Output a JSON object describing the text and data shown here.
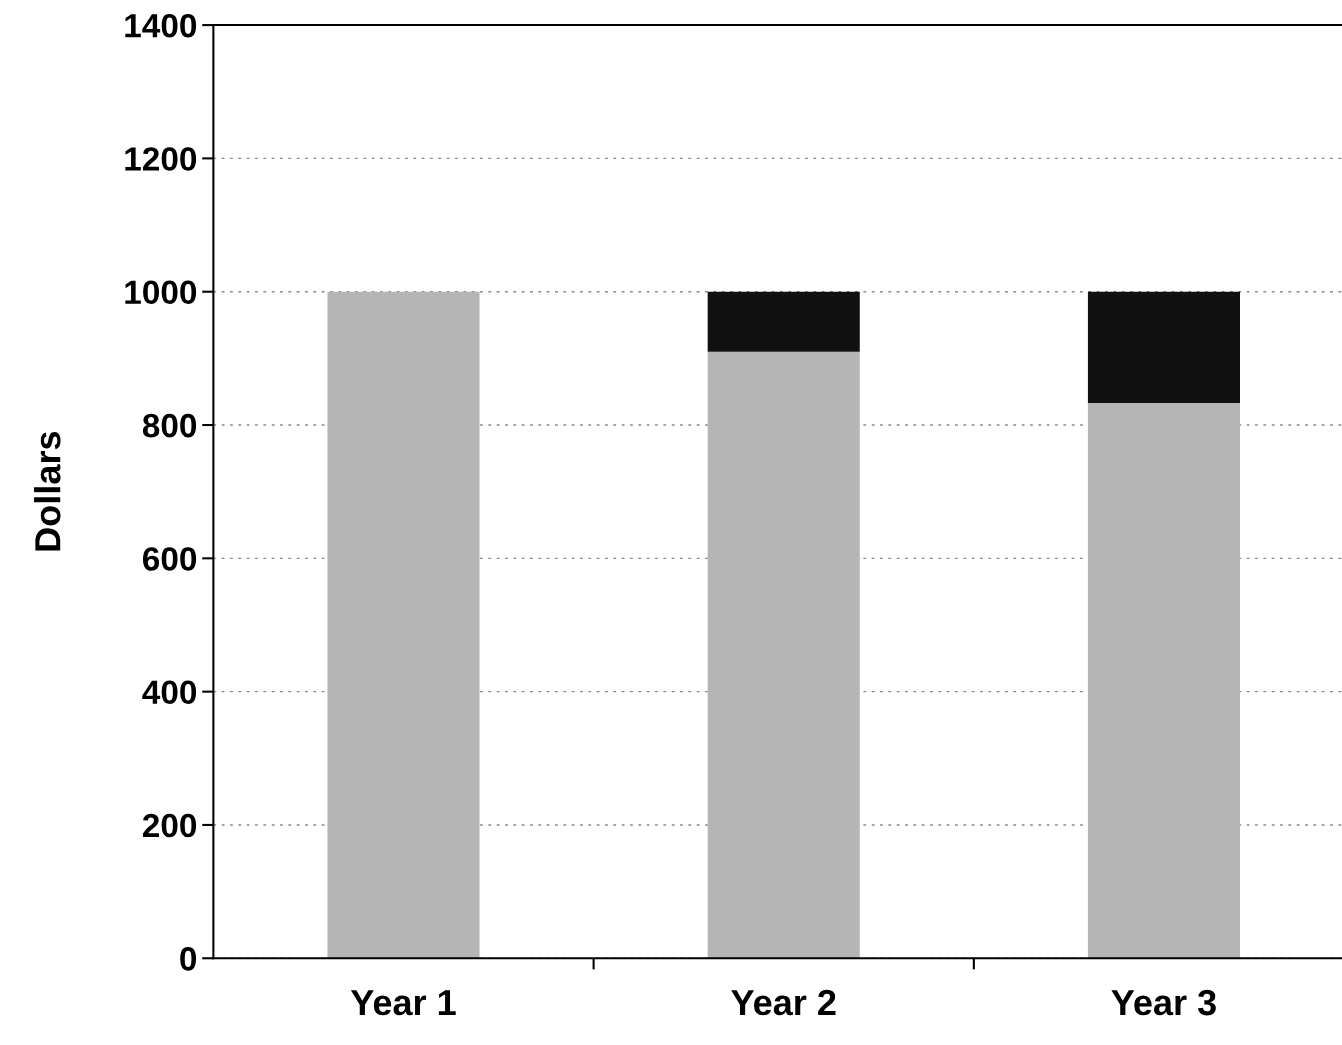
{
  "chart_data": {
    "type": "bar",
    "stacked": true,
    "ylabel": "Dollars",
    "categories": [
      "Year 1",
      "Year 2",
      "Year 3"
    ],
    "series": [
      {
        "color": "#b5b5b5",
        "values": [
          1000,
          910,
          833
        ]
      },
      {
        "color": "#111111",
        "values": [
          0,
          90,
          167
        ]
      }
    ],
    "ylim": [
      0,
      1400
    ],
    "yticks": [
      0,
      200,
      400,
      600,
      800,
      1000,
      1200,
      1400
    ],
    "grid": "y",
    "legend": false
  }
}
